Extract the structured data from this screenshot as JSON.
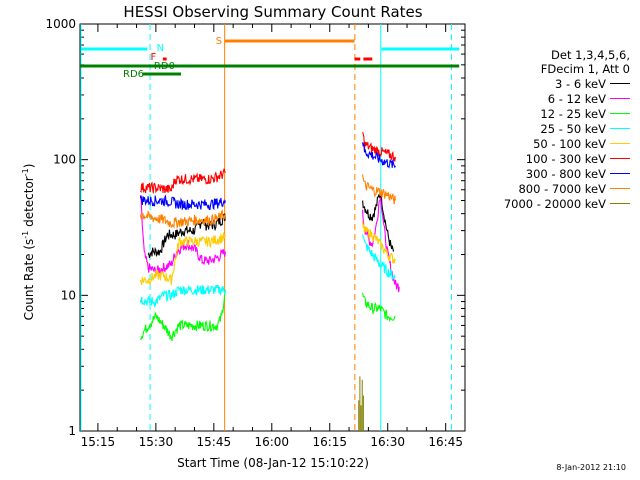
{
  "chart_data": {
    "type": "line",
    "title": "HESSI Observing Summary Count Rates",
    "xlabel": "Start Time (08-Jan-12 15:10:22)",
    "ylabel_main": "Count Rate (s",
    "ylabel_sup1": "-1",
    "ylabel_mid": " detector",
    "ylabel_sup2": "-1",
    "ylabel_end": ")",
    "yscale": "log",
    "ylim": [
      1,
      1000
    ],
    "xlim": [
      "15:10:22",
      "16:50:00"
    ],
    "x_tick_labels": [
      "15:15",
      "15:30",
      "15:45",
      "16:00",
      "16:15",
      "16:30",
      "16:45"
    ],
    "x_tick_minutes": [
      915,
      930,
      945,
      960,
      975,
      990,
      1005
    ],
    "y_ticks": [
      {
        "value": 1,
        "label": "1"
      },
      {
        "value": 10,
        "label": "10"
      },
      {
        "value": 100,
        "label": "100"
      },
      {
        "value": 1000,
        "label": "1000"
      }
    ],
    "legend_header": [
      "Det 1,3,4,5,6,",
      "FDecim 1, Att 0"
    ],
    "series": [
      {
        "name": "3 - 6 keV",
        "color": "#000000",
        "segments": [
          [
            [
              928,
              20
            ],
            [
              929,
              21
            ],
            [
              931,
              21
            ],
            [
              933,
              28
            ],
            [
              935,
              28
            ],
            [
              937,
              30
            ],
            [
              939,
              30
            ],
            [
              940,
              30
            ],
            [
              941,
              32
            ],
            [
              942,
              36
            ],
            [
              943,
              33
            ],
            [
              945,
              33
            ],
            [
              947,
              36
            ],
            [
              948,
              38
            ]
          ],
          [
            [
              983.5,
              50
            ],
            [
              984,
              45
            ],
            [
              985,
              40
            ],
            [
              986,
              38
            ],
            [
              987,
              45
            ],
            [
              988,
              58
            ],
            [
              988.5,
              50
            ],
            [
              989,
              40
            ],
            [
              990,
              28
            ],
            [
              991,
              22
            ],
            [
              991.5,
              21
            ]
          ]
        ]
      },
      {
        "name": "6 - 12 keV",
        "color": "#ff00ff",
        "segments": [
          [
            [
              926,
              55
            ],
            [
              927,
              20
            ],
            [
              928,
              16
            ],
            [
              930,
              15
            ],
            [
              932,
              16
            ],
            [
              934,
              17
            ],
            [
              935,
              20
            ],
            [
              936,
              22
            ],
            [
              938,
              24
            ],
            [
              940,
              22
            ],
            [
              942,
              18
            ],
            [
              944,
              18
            ],
            [
              946,
              19
            ],
            [
              947,
              20
            ],
            [
              948,
              21
            ]
          ],
          [
            [
              983.5,
              40
            ],
            [
              984,
              32
            ],
            [
              985,
              26
            ],
            [
              986,
              24
            ],
            [
              987,
              32
            ],
            [
              988,
              55
            ],
            [
              988.5,
              45
            ],
            [
              989,
              32
            ],
            [
              990,
              20
            ],
            [
              991,
              15
            ],
            [
              992,
              12
            ],
            [
              993,
              11.5
            ]
          ]
        ]
      },
      {
        "name": "12 - 25 keV",
        "color": "#00ff00",
        "segments": [
          [
            [
              926,
              5
            ],
            [
              928,
              6
            ],
            [
              930,
              7
            ],
            [
              932,
              6
            ],
            [
              934,
              5
            ],
            [
              936,
              6
            ],
            [
              938,
              6
            ],
            [
              940,
              6
            ],
            [
              942,
              6
            ],
            [
              944,
              6
            ],
            [
              946,
              6
            ],
            [
              947,
              7
            ],
            [
              948,
              11
            ]
          ],
          [
            [
              983.5,
              10
            ],
            [
              984,
              9
            ],
            [
              986,
              8
            ],
            [
              988,
              8
            ],
            [
              990,
              7
            ],
            [
              992,
              7
            ]
          ]
        ]
      },
      {
        "name": "25 - 50 keV",
        "color": "#00ffff",
        "segments": [
          [
            [
              926,
              9.5
            ],
            [
              928,
              9
            ],
            [
              930,
              9
            ],
            [
              932,
              10
            ],
            [
              934,
              10
            ],
            [
              936,
              11
            ],
            [
              938,
              11
            ],
            [
              940,
              11
            ],
            [
              942,
              11
            ],
            [
              944,
              11
            ],
            [
              946,
              11
            ],
            [
              948,
              11
            ]
          ],
          [
            [
              983.5,
              30
            ],
            [
              984,
              24
            ],
            [
              986,
              20
            ],
            [
              988,
              17
            ],
            [
              990,
              15
            ],
            [
              992,
              13.5
            ]
          ]
        ]
      },
      {
        "name": "50 - 100 keV",
        "color": "#ffcc00",
        "segments": [
          [
            [
              926,
              13
            ],
            [
              928,
              13
            ],
            [
              930,
              14
            ],
            [
              932,
              14
            ],
            [
              934,
              13
            ],
            [
              936,
              25
            ],
            [
              938,
              25
            ],
            [
              940,
              25
            ],
            [
              942,
              25
            ],
            [
              944,
              25
            ],
            [
              946,
              26
            ],
            [
              948,
              27
            ]
          ],
          [
            [
              983.5,
              33
            ],
            [
              984,
              30
            ],
            [
              986,
              28
            ],
            [
              988,
              24
            ],
            [
              990,
              20
            ],
            [
              992,
              18
            ]
          ]
        ]
      },
      {
        "name": "100 - 300 keV",
        "color": "#ff0000",
        "segments": [
          [
            [
              926,
              63
            ],
            [
              928,
              62
            ],
            [
              930,
              62
            ],
            [
              932,
              61
            ],
            [
              934,
              60
            ],
            [
              935,
              72
            ],
            [
              936,
              72
            ],
            [
              938,
              72
            ],
            [
              940,
              72
            ],
            [
              942,
              72
            ],
            [
              944,
              72
            ],
            [
              946,
              75
            ],
            [
              948,
              80
            ]
          ],
          [
            [
              983.5,
              160
            ],
            [
              984,
              130
            ],
            [
              986,
              120
            ],
            [
              988,
              115
            ],
            [
              990,
              110
            ],
            [
              992,
              105
            ]
          ]
        ]
      },
      {
        "name": "300 - 800 keV",
        "color": "#0000ff",
        "segments": [
          [
            [
              926,
              51
            ],
            [
              928,
              50
            ],
            [
              930,
              50
            ],
            [
              932,
              50
            ],
            [
              934,
              49
            ],
            [
              936,
              47
            ],
            [
              938,
              47
            ],
            [
              940,
              47
            ],
            [
              942,
              47
            ],
            [
              944,
              47
            ],
            [
              946,
              48
            ],
            [
              948,
              50
            ]
          ],
          [
            [
              983.5,
              140
            ],
            [
              984,
              115
            ],
            [
              986,
              108
            ],
            [
              988,
              100
            ],
            [
              990,
              95
            ],
            [
              992,
              90
            ]
          ]
        ]
      },
      {
        "name": "800 - 7000 keV",
        "color": "#ff8000",
        "segments": [
          [
            [
              926,
              40
            ],
            [
              928,
              38
            ],
            [
              930,
              37
            ],
            [
              932,
              36
            ],
            [
              934,
              34
            ],
            [
              936,
              35
            ],
            [
              938,
              35
            ],
            [
              940,
              36
            ],
            [
              942,
              36
            ],
            [
              944,
              36
            ],
            [
              946,
              37
            ],
            [
              948,
              40
            ]
          ],
          [
            [
              983.5,
              75
            ],
            [
              984,
              65
            ],
            [
              986,
              60
            ],
            [
              988,
              58
            ],
            [
              990,
              55
            ],
            [
              992,
              50
            ]
          ]
        ]
      },
      {
        "name": "7000 - 20000 keV",
        "color": "#808000",
        "segments": [
          [
            [
              982.5,
              1.2
            ],
            [
              982.8,
              1.8
            ],
            [
              983.1,
              1.1
            ],
            [
              983.4,
              1.7
            ],
            [
              983.7,
              1.3
            ]
          ]
        ]
      }
    ],
    "annotations": [
      {
        "label": "N",
        "color": "#00ffff"
      },
      {
        "label": "F",
        "color": "#ff0000"
      },
      {
        "label": "S",
        "color": "#ff8000"
      },
      {
        "label": "RD0",
        "color": "#008000"
      },
      {
        "label": "RD6",
        "color": "#008000"
      }
    ]
  },
  "footer": {
    "stamp": "8-Jan-2012 21:10"
  },
  "colors": {
    "axis": "#000000",
    "night": "#00ffff",
    "saa": "#ff8000",
    "flare": "#ff0000",
    "decim": "#008000"
  }
}
